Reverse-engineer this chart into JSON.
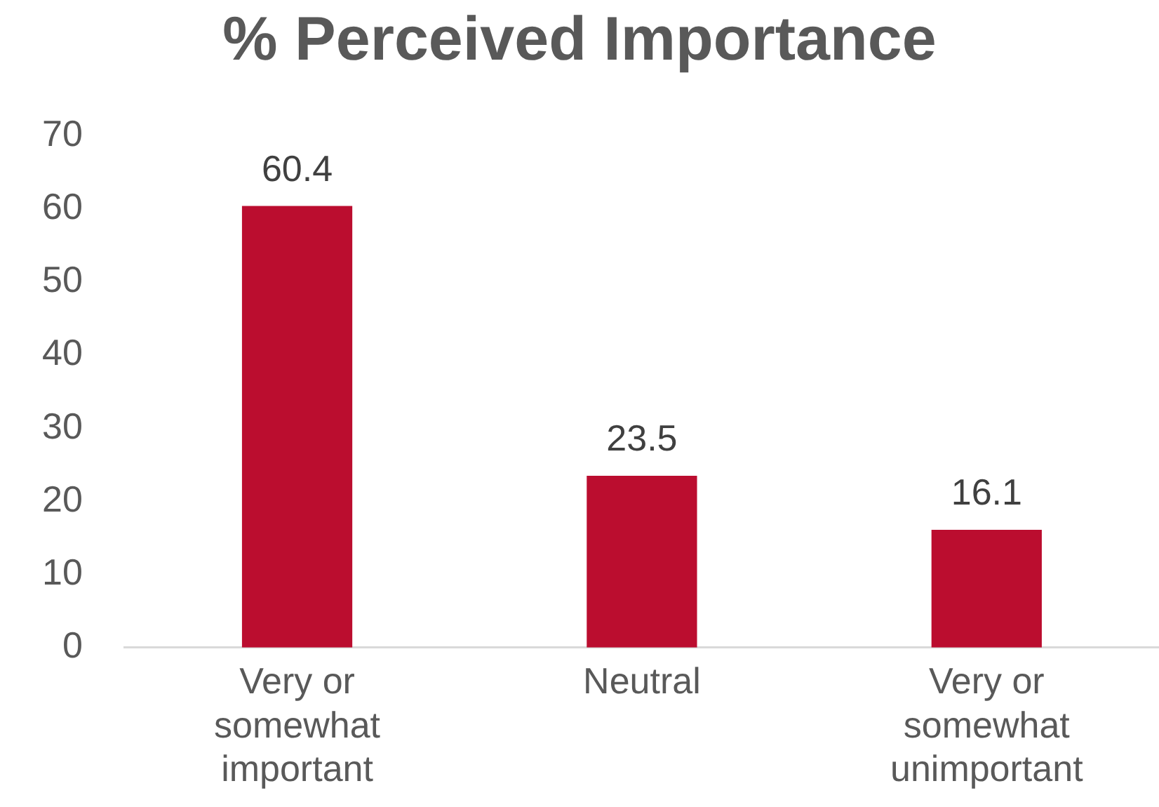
{
  "chart_data": {
    "type": "bar",
    "title": "% Perceived Importance",
    "categories": [
      "Very or somewhat important",
      "Neutral",
      "Very or somewhat unimportant"
    ],
    "values": [
      60.4,
      23.5,
      16.1
    ],
    "color": "#bb0d2f",
    "ylim": [
      0,
      70
    ],
    "yticks": [
      0,
      10,
      20,
      30,
      40,
      50,
      60,
      70
    ],
    "grid": false,
    "data_labels": true,
    "legend": false
  }
}
